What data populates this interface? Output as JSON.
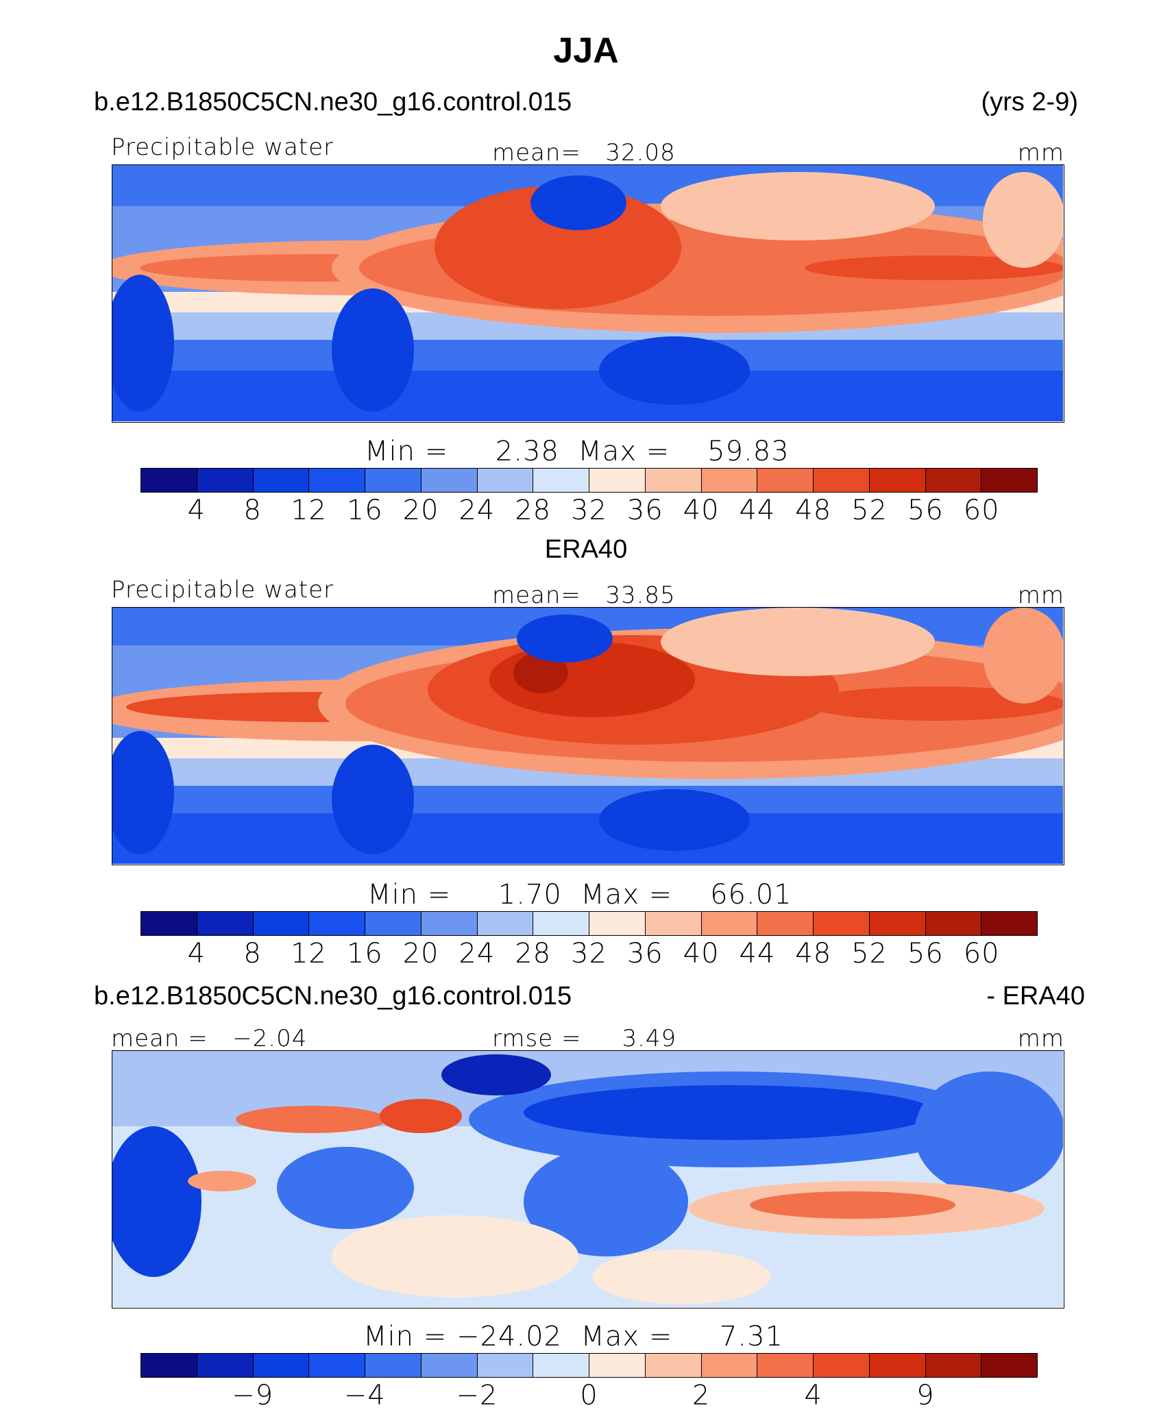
{
  "figure": {
    "title": "JJA"
  },
  "panel1": {
    "case": "b.e12.B1850C5CN.ne30_g16.control.015",
    "years": "(yrs 2-9)",
    "variable": "Precipitable water",
    "mean_label": "mean=",
    "mean_value": "32.08",
    "units": "mm",
    "min_label": "Min  =",
    "min_value": "2.38",
    "max_label": "Max  =",
    "max_value": "59.83"
  },
  "panel2": {
    "case": "ERA40",
    "variable": "Precipitable water",
    "mean_label": "mean=",
    "mean_value": "33.85",
    "units": "mm",
    "min_label": "Min  =",
    "min_value": "1.70",
    "max_label": "Max  =",
    "max_value": "66.01"
  },
  "panel3": {
    "case": "b.e12.B1850C5CN.ne30_g16.control.015",
    "diff_label": "- ERA40",
    "mean_label": "mean =",
    "mean_value": "−2.04",
    "rmse_label": "rmse =",
    "rmse_value": "3.49",
    "units": "mm",
    "min_label": "Min  =",
    "min_value": "−24.02",
    "max_label": "Max  =",
    "max_value": "7.31"
  },
  "colorbar_abs": {
    "colors": [
      "#0b0d86",
      "#0a23b8",
      "#0b3fe0",
      "#1a52f0",
      "#3a72f0",
      "#6d96f0",
      "#a9c4f4",
      "#d6e6fa",
      "#fde9da",
      "#fbc4a8",
      "#f99c78",
      "#f2704a",
      "#e84b26",
      "#d42e10",
      "#b01c0a",
      "#860a08"
    ],
    "tick_labels": [
      "4",
      "8",
      "12",
      "16",
      "20",
      "24",
      "28",
      "32",
      "36",
      "40",
      "44",
      "48",
      "52",
      "56",
      "60"
    ]
  },
  "colorbar_diff": {
    "colors": [
      "#0b0d86",
      "#0a23b8",
      "#0b3fe0",
      "#1a52f0",
      "#3a72f0",
      "#6d96f0",
      "#a9c4f4",
      "#d6e6fa",
      "#fde9da",
      "#fbc4a8",
      "#f99c78",
      "#f2704a",
      "#e84b26",
      "#d42e10",
      "#b01c0a",
      "#860a08"
    ],
    "tick_labels": [
      "−9",
      "−4",
      "−2",
      "0",
      "2",
      "4",
      "9"
    ],
    "tick_boundaries": [
      2,
      4,
      6,
      8,
      10,
      12,
      14
    ]
  }
}
